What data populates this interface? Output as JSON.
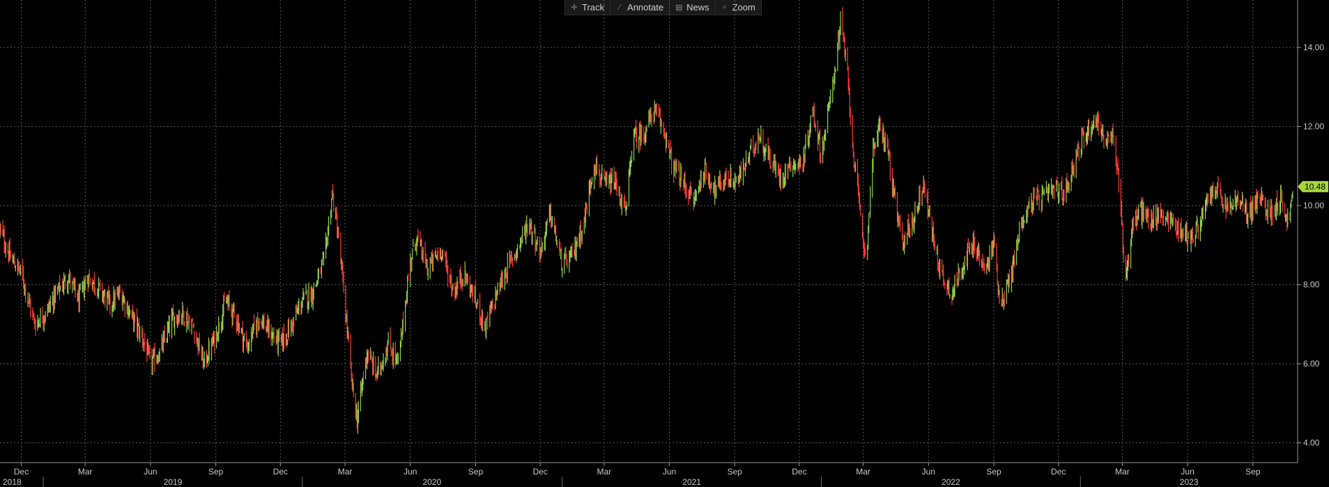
{
  "toolbar": {
    "track": "Track",
    "annotate": "Annotate",
    "news": "News",
    "zoom": "Zoom"
  },
  "colors": {
    "up": "#8fd64a",
    "down": "#ff3b3b",
    "last_badge": "#a6d63f",
    "grid": "#5a5a5a"
  },
  "chart_data": {
    "type": "line",
    "title": "",
    "xlabel": "",
    "ylabel": "",
    "style": "daily OHLC bars colored by direction (green up, red down)",
    "grid": true,
    "y_axis_position": "right",
    "ylim": [
      3.5,
      15.2
    ],
    "yticks": [
      "4.00",
      "6.00",
      "8.00",
      "10.00",
      "12.00",
      "14.00"
    ],
    "xlim": [
      "2018-11-01",
      "2023-11-03"
    ],
    "month_ticks": [
      {
        "label": "Dec",
        "date": "2018-12-01"
      },
      {
        "label": "Mar",
        "date": "2019-03-01"
      },
      {
        "label": "Jun",
        "date": "2019-06-01"
      },
      {
        "label": "Sep",
        "date": "2019-09-01"
      },
      {
        "label": "Dec",
        "date": "2019-12-01"
      },
      {
        "label": "Mar",
        "date": "2020-03-01"
      },
      {
        "label": "Jun",
        "date": "2020-06-01"
      },
      {
        "label": "Sep",
        "date": "2020-09-01"
      },
      {
        "label": "Dec",
        "date": "2020-12-01"
      },
      {
        "label": "Mar",
        "date": "2021-03-01"
      },
      {
        "label": "Jun",
        "date": "2021-06-01"
      },
      {
        "label": "Sep",
        "date": "2021-09-01"
      },
      {
        "label": "Dec",
        "date": "2021-12-01"
      },
      {
        "label": "Mar",
        "date": "2022-03-01"
      },
      {
        "label": "Jun",
        "date": "2022-06-01"
      },
      {
        "label": "Sep",
        "date": "2022-09-01"
      },
      {
        "label": "Dec",
        "date": "2022-12-01"
      },
      {
        "label": "Mar",
        "date": "2023-03-01"
      },
      {
        "label": "Jun",
        "date": "2023-06-01"
      },
      {
        "label": "Sep",
        "date": "2023-09-01"
      }
    ],
    "year_labels": [
      {
        "label": "2018",
        "date": "2018-11-01"
      },
      {
        "label": "2019",
        "date": "2019-01-01"
      },
      {
        "label": "2020",
        "date": "2020-01-01"
      },
      {
        "label": "2021",
        "date": "2021-01-01"
      },
      {
        "label": "2022",
        "date": "2022-01-01"
      },
      {
        "label": "2023",
        "date": "2023-01-01"
      }
    ],
    "last_value": "10.48",
    "series": [
      {
        "values_approx": [
          [
            "2018-11-01",
            9.4
          ],
          [
            "2018-11-15",
            8.7
          ],
          [
            "2018-12-01",
            8.3
          ],
          [
            "2018-12-20",
            7.0
          ],
          [
            "2019-01-05",
            7.3
          ],
          [
            "2019-01-20",
            7.8
          ],
          [
            "2019-02-05",
            8.2
          ],
          [
            "2019-02-20",
            7.6
          ],
          [
            "2019-03-05",
            8.2
          ],
          [
            "2019-03-20",
            7.9
          ],
          [
            "2019-04-05",
            7.5
          ],
          [
            "2019-04-20",
            7.8
          ],
          [
            "2019-05-05",
            7.2
          ],
          [
            "2019-05-20",
            6.7
          ],
          [
            "2019-06-01",
            6.0
          ],
          [
            "2019-06-15",
            6.3
          ],
          [
            "2019-07-01",
            7.1
          ],
          [
            "2019-07-15",
            7.3
          ],
          [
            "2019-08-01",
            6.9
          ],
          [
            "2019-08-15",
            6.0
          ],
          [
            "2019-09-01",
            6.7
          ],
          [
            "2019-09-15",
            7.6
          ],
          [
            "2019-10-01",
            7.1
          ],
          [
            "2019-10-15",
            6.4
          ],
          [
            "2019-11-01",
            7.2
          ],
          [
            "2019-11-15",
            6.8
          ],
          [
            "2019-12-01",
            6.5
          ],
          [
            "2019-12-15",
            6.9
          ],
          [
            "2020-01-01",
            7.6
          ],
          [
            "2020-01-15",
            7.8
          ],
          [
            "2020-02-01",
            8.6
          ],
          [
            "2020-02-12",
            10.3
          ],
          [
            "2020-02-20",
            9.3
          ],
          [
            "2020-03-01",
            7.5
          ],
          [
            "2020-03-10",
            5.6
          ],
          [
            "2020-03-18",
            4.6
          ],
          [
            "2020-04-01",
            6.3
          ],
          [
            "2020-04-15",
            5.7
          ],
          [
            "2020-05-01",
            6.5
          ],
          [
            "2020-05-15",
            6.0
          ],
          [
            "2020-06-01",
            8.6
          ],
          [
            "2020-06-10",
            9.2
          ],
          [
            "2020-06-25",
            8.4
          ],
          [
            "2020-07-15",
            8.9
          ],
          [
            "2020-08-01",
            7.8
          ],
          [
            "2020-08-15",
            8.3
          ],
          [
            "2020-09-01",
            7.6
          ],
          [
            "2020-09-15",
            6.9
          ],
          [
            "2020-10-01",
            7.8
          ],
          [
            "2020-10-15",
            8.4
          ],
          [
            "2020-11-01",
            9.0
          ],
          [
            "2020-11-15",
            9.6
          ],
          [
            "2020-12-01",
            8.8
          ],
          [
            "2020-12-15",
            9.8
          ],
          [
            "2021-01-01",
            8.5
          ],
          [
            "2021-01-15",
            8.7
          ],
          [
            "2021-02-01",
            9.6
          ],
          [
            "2021-02-15",
            11.1
          ],
          [
            "2021-03-01",
            10.5
          ],
          [
            "2021-03-15",
            10.6
          ],
          [
            "2021-04-01",
            9.8
          ],
          [
            "2021-04-10",
            11.7
          ],
          [
            "2021-04-25",
            11.8
          ],
          [
            "2021-05-10",
            12.4
          ],
          [
            "2021-05-25",
            11.9
          ],
          [
            "2021-06-05",
            11.0
          ],
          [
            "2021-06-20",
            10.6
          ],
          [
            "2021-07-05",
            10.1
          ],
          [
            "2021-07-20",
            10.9
          ],
          [
            "2021-08-05",
            10.4
          ],
          [
            "2021-08-20",
            10.7
          ],
          [
            "2021-09-05",
            10.6
          ],
          [
            "2021-09-20",
            11.2
          ],
          [
            "2021-10-05",
            11.8
          ],
          [
            "2021-10-20",
            11.2
          ],
          [
            "2021-11-05",
            10.7
          ],
          [
            "2021-11-20",
            11.1
          ],
          [
            "2021-12-05",
            11.0
          ],
          [
            "2021-12-20",
            12.4
          ],
          [
            "2022-01-01",
            11.3
          ],
          [
            "2022-01-15",
            12.8
          ],
          [
            "2022-01-28",
            14.6
          ],
          [
            "2022-02-05",
            13.7
          ],
          [
            "2022-02-15",
            11.4
          ],
          [
            "2022-02-25",
            9.7
          ],
          [
            "2022-03-05",
            8.6
          ],
          [
            "2022-03-15",
            11.4
          ],
          [
            "2022-03-25",
            12.0
          ],
          [
            "2022-04-05",
            11.4
          ],
          [
            "2022-04-15",
            10.0
          ],
          [
            "2022-04-25",
            9.1
          ],
          [
            "2022-05-10",
            9.6
          ],
          [
            "2022-05-25",
            10.6
          ],
          [
            "2022-06-05",
            9.4
          ],
          [
            "2022-06-20",
            8.2
          ],
          [
            "2022-07-05",
            7.8
          ],
          [
            "2022-07-20",
            8.6
          ],
          [
            "2022-08-05",
            9.0
          ],
          [
            "2022-08-20",
            8.3
          ],
          [
            "2022-09-01",
            9.1
          ],
          [
            "2022-09-10",
            7.5
          ],
          [
            "2022-09-25",
            8.2
          ],
          [
            "2022-10-10",
            9.6
          ],
          [
            "2022-10-25",
            10.1
          ],
          [
            "2022-11-10",
            10.2
          ],
          [
            "2022-11-25",
            10.4
          ],
          [
            "2022-12-10",
            10.3
          ],
          [
            "2022-12-25",
            11.2
          ],
          [
            "2023-01-10",
            11.9
          ],
          [
            "2023-01-25",
            12.2
          ],
          [
            "2023-02-05",
            11.6
          ],
          [
            "2023-02-15",
            11.7
          ],
          [
            "2023-02-25",
            10.6
          ],
          [
            "2023-03-05",
            8.1
          ],
          [
            "2023-03-15",
            9.4
          ],
          [
            "2023-03-25",
            9.9
          ],
          [
            "2023-04-10",
            9.6
          ],
          [
            "2023-04-25",
            9.8
          ],
          [
            "2023-05-10",
            9.6
          ],
          [
            "2023-05-25",
            9.3
          ],
          [
            "2023-06-10",
            9.2
          ],
          [
            "2023-06-25",
            9.9
          ],
          [
            "2023-07-10",
            10.5
          ],
          [
            "2023-07-25",
            9.9
          ],
          [
            "2023-08-10",
            10.1
          ],
          [
            "2023-08-25",
            9.8
          ],
          [
            "2023-09-10",
            10.2
          ],
          [
            "2023-09-25",
            9.8
          ],
          [
            "2023-10-10",
            10.2
          ],
          [
            "2023-10-20",
            9.6
          ],
          [
            "2023-10-30",
            10.48
          ]
        ]
      }
    ]
  }
}
